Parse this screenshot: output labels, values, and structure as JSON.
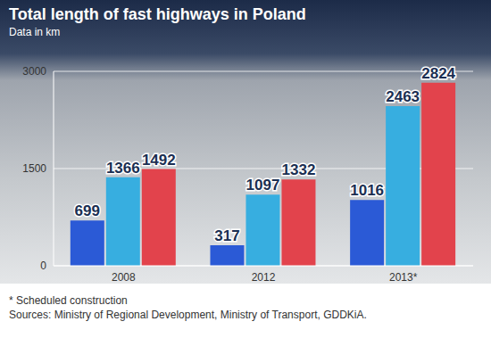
{
  "chart_data": {
    "type": "bar",
    "title": "Total length of fast highways in Poland",
    "subtitle": "Data in km",
    "categories": [
      "2008",
      "2012",
      "2013*"
    ],
    "series": [
      {
        "color": "#2b5ad6",
        "values": [
          699,
          317,
          1016
        ]
      },
      {
        "color": "#37aee0",
        "values": [
          1366,
          1097,
          2463
        ]
      },
      {
        "color": "#e2434c",
        "values": [
          1492,
          1332,
          2824
        ]
      }
    ],
    "ylim": [
      0,
      3000
    ],
    "yticks": [
      0,
      1500,
      3000
    ],
    "grid": true,
    "data_labels": true,
    "footnote": "* Scheduled construction",
    "source": "Sources: Ministry of Regional Development, Ministry of Transport, GDDKiA."
  }
}
